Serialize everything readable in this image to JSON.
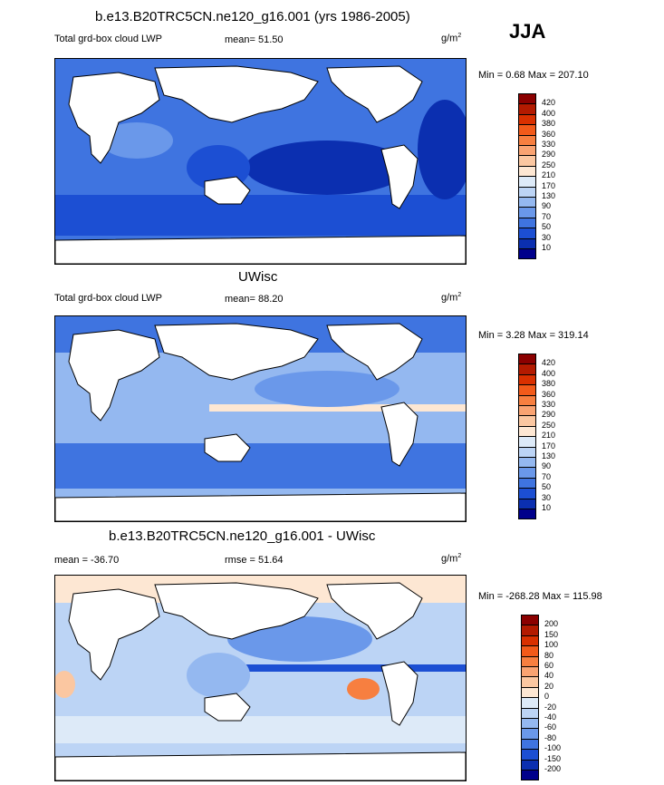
{
  "season": "JJA",
  "panels": [
    {
      "id": "model",
      "title": "b.e13.B20TRC5CN.ne120_g16.001 (yrs 1986-2005)",
      "left_label": "Total grd-box cloud LWP",
      "center_label": "mean=  51.50",
      "units": "g/m",
      "units_sup": "2",
      "minmax": "Min =   0.68 Max = 207.10",
      "colorbar_labels": [
        "420",
        "400",
        "380",
        "360",
        "330",
        "290",
        "250",
        "210",
        "170",
        "130",
        "90",
        "70",
        "50",
        "30",
        "10"
      ],
      "colorbar_colors": [
        "#8b0000",
        "#b31a00",
        "#d93000",
        "#f25a1a",
        "#f77f40",
        "#f9a372",
        "#fbc7a1",
        "#fde7d3",
        "#ddeaf8",
        "#bcd4f5",
        "#94b8f0",
        "#6a98ea",
        "#3f74e0",
        "#1c4fd3",
        "#0b2fb0",
        "#00008b"
      ]
    },
    {
      "id": "obs",
      "title": "UWisc",
      "left_label": "Total grd-box cloud LWP",
      "center_label": "mean=  88.20",
      "units": "g/m",
      "units_sup": "2",
      "minmax": "Min =   3.28 Max = 319.14",
      "colorbar_labels": [
        "420",
        "400",
        "380",
        "360",
        "330",
        "290",
        "250",
        "210",
        "170",
        "130",
        "90",
        "70",
        "50",
        "30",
        "10"
      ],
      "colorbar_colors": [
        "#8b0000",
        "#b31a00",
        "#d93000",
        "#f25a1a",
        "#f77f40",
        "#f9a372",
        "#fbc7a1",
        "#fde7d3",
        "#ddeaf8",
        "#bcd4f5",
        "#94b8f0",
        "#6a98ea",
        "#3f74e0",
        "#1c4fd3",
        "#0b2fb0",
        "#00008b"
      ]
    },
    {
      "id": "diff",
      "title": "b.e13.B20TRC5CN.ne120_g16.001 - UWisc",
      "left_label": "mean = -36.70",
      "center_label": "rmse =  51.64",
      "units": "g/m",
      "units_sup": "2",
      "minmax": "Min = -268.28 Max = 115.98",
      "colorbar_labels": [
        "200",
        "150",
        "100",
        "80",
        "60",
        "40",
        "20",
        "0",
        "-20",
        "-40",
        "-60",
        "-80",
        "-100",
        "-150",
        "-200"
      ],
      "colorbar_colors": [
        "#8b0000",
        "#b31a00",
        "#d93000",
        "#f25a1a",
        "#f77f40",
        "#f9a372",
        "#fbc7a1",
        "#fde7d3",
        "#ddeaf8",
        "#bcd4f5",
        "#94b8f0",
        "#6a98ea",
        "#3f74e0",
        "#1c4fd3",
        "#0b2fb0",
        "#00008b"
      ]
    }
  ]
}
